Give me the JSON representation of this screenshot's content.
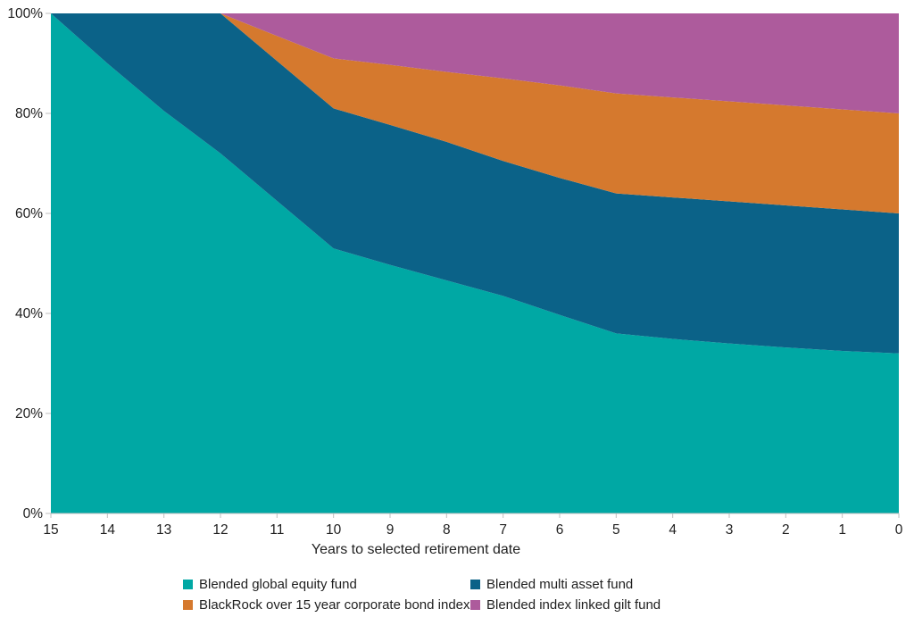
{
  "page": {
    "background": "#FFFFFF"
  },
  "chart_data": {
    "type": "area",
    "stacked": true,
    "title": "",
    "xlabel": "Years to selected retirement date",
    "ylabel": "",
    "x": [
      15,
      14,
      13,
      12,
      11,
      10,
      9,
      8,
      7,
      6,
      5,
      4,
      3,
      2,
      1,
      0
    ],
    "ylim": [
      0,
      100
    ],
    "grid": false,
    "legend_position": "bottom",
    "axis_color": "#BFBFBF",
    "text_color": "#1F1F1F",
    "yticks": [
      {
        "value": 0,
        "label": "0%"
      },
      {
        "value": 20,
        "label": "20%"
      },
      {
        "value": 40,
        "label": "40%"
      },
      {
        "value": 60,
        "label": "60%"
      },
      {
        "value": 80,
        "label": "80%"
      },
      {
        "value": 100,
        "label": "100%"
      }
    ],
    "series": [
      {
        "id": "blended-global-equity-fund",
        "name": "Blended global equity fund",
        "color": "#00A8A4",
        "values": [
          100,
          90,
          80.5,
          72,
          62.5,
          53,
          49.7,
          46.6,
          43.5,
          39.7,
          36,
          34.9,
          34,
          33.2,
          32.5,
          32
        ]
      },
      {
        "id": "blended-multi-asset-fund",
        "name": "Blended multi asset fund",
        "color": "#0B6288",
        "values": [
          0,
          10,
          19.5,
          28,
          28,
          28,
          28,
          27.7,
          27,
          27.4,
          28,
          28.3,
          28.4,
          28.4,
          28.3,
          28
        ]
      },
      {
        "id": "blackrock-over-15-year-corporate-bond-index",
        "name": "BlackRock over 15 year corporate bond index",
        "color": "#D5792E",
        "values": [
          0,
          0,
          0,
          0,
          5,
          10,
          12,
          14,
          16.5,
          18.5,
          20,
          20,
          20,
          20,
          20,
          20
        ]
      },
      {
        "id": "blended-index-linked-gilt-fund",
        "name": "Blended index linked gilt fund",
        "color": "#AD5B9C",
        "values": [
          0,
          0,
          0,
          0,
          4.5,
          9,
          10.3,
          11.7,
          13,
          14.4,
          16,
          16.8,
          17.6,
          18.4,
          19.2,
          20
        ]
      }
    ]
  }
}
